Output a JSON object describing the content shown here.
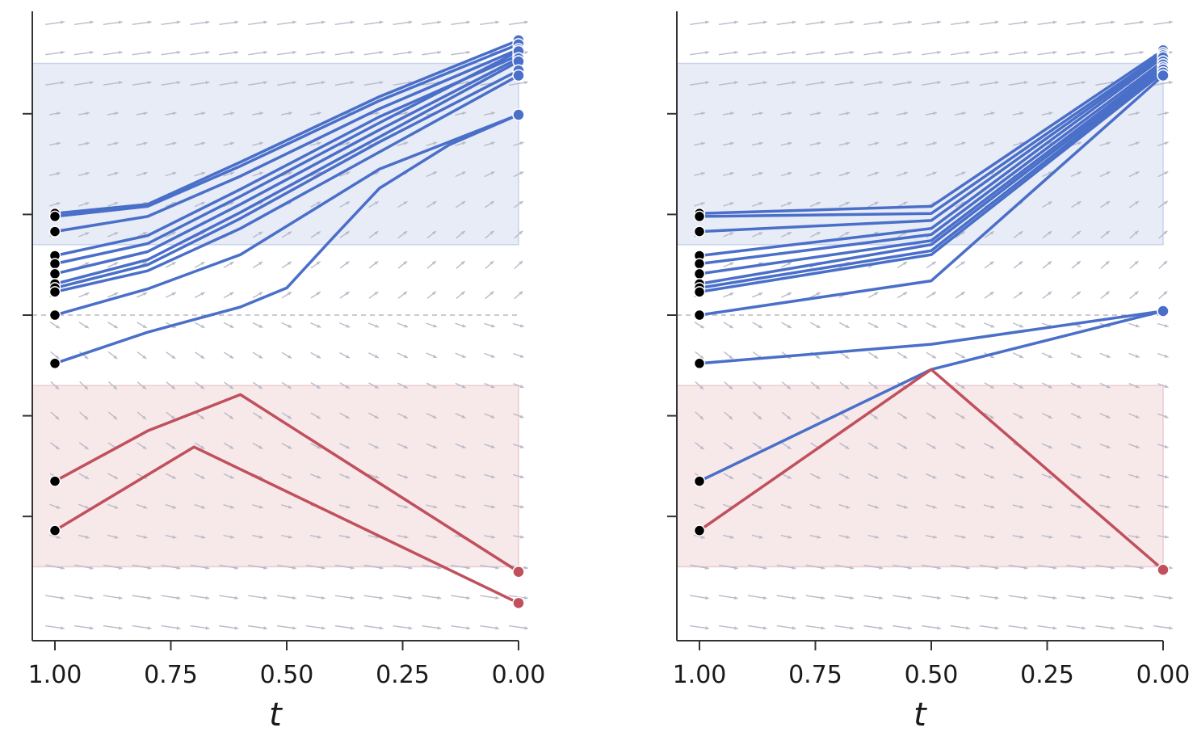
{
  "chart_data": [
    {
      "type": "line",
      "panel": "left",
      "xlabel": "t",
      "x_ticks": [
        "1.00",
        "0.75",
        "0.50",
        "0.25",
        "0.00"
      ],
      "xlim": [
        1.0,
        0.0
      ],
      "ylim": [
        -3.2,
        3.1
      ],
      "y_ticks": [
        -2,
        -1,
        0,
        1,
        2
      ],
      "bands": [
        {
          "name": "blue-region",
          "y0": 0.7,
          "y1": 2.5,
          "color": "#e8ecf7",
          "edge": "#c9d3ee"
        },
        {
          "name": "red-region",
          "y0": -2.5,
          "y1": -0.7,
          "color": "#f7e8ea",
          "edge": "#eccbd0"
        }
      ],
      "zero_line": true,
      "colors": {
        "blue": "#4a6fc9",
        "red": "#c0505c",
        "start": "#000000",
        "vector": "#b9bbc9"
      },
      "trajectories": [
        {
          "class": "blue",
          "points": [
            [
              1.0,
              1.01
            ],
            [
              0.8,
              1.1
            ],
            [
              0.6,
              1.52
            ],
            [
              0.3,
              2.17
            ],
            [
              0.0,
              2.73
            ]
          ]
        },
        {
          "class": "blue",
          "points": [
            [
              1.0,
              0.98
            ],
            [
              0.8,
              1.08
            ],
            [
              0.6,
              1.48
            ],
            [
              0.3,
              2.13
            ],
            [
              0.0,
              2.69
            ]
          ]
        },
        {
          "class": "blue",
          "points": [
            [
              1.0,
              0.83
            ],
            [
              0.8,
              0.98
            ],
            [
              0.6,
              1.38
            ],
            [
              0.3,
              2.05
            ],
            [
              0.0,
              2.64
            ]
          ]
        },
        {
          "class": "blue",
          "points": [
            [
              1.0,
              0.59
            ],
            [
              0.8,
              0.79
            ],
            [
              0.6,
              1.25
            ],
            [
              0.3,
              1.97
            ],
            [
              0.0,
              2.58
            ]
          ]
        },
        {
          "class": "blue",
          "points": [
            [
              1.0,
              0.51
            ],
            [
              0.8,
              0.71
            ],
            [
              0.6,
              1.18
            ],
            [
              0.3,
              1.91
            ],
            [
              0.0,
              2.62
            ]
          ]
        },
        {
          "class": "blue",
          "points": [
            [
              1.0,
              0.41
            ],
            [
              0.8,
              0.63
            ],
            [
              0.6,
              1.1
            ],
            [
              0.3,
              1.84
            ],
            [
              0.0,
              2.55
            ]
          ]
        },
        {
          "class": "blue",
          "points": [
            [
              1.0,
              0.31
            ],
            [
              0.8,
              0.55
            ],
            [
              0.6,
              1.02
            ],
            [
              0.3,
              1.77
            ],
            [
              0.0,
              2.52
            ]
          ]
        },
        {
          "class": "blue",
          "points": [
            [
              1.0,
              0.27
            ],
            [
              0.8,
              0.5
            ],
            [
              0.6,
              0.96
            ],
            [
              0.3,
              1.72
            ],
            [
              0.0,
              2.43
            ]
          ]
        },
        {
          "class": "blue",
          "points": [
            [
              1.0,
              0.23
            ],
            [
              0.8,
              0.44
            ],
            [
              0.6,
              0.86
            ],
            [
              0.3,
              1.62
            ],
            [
              0.0,
              2.38
            ]
          ]
        },
        {
          "class": "blue",
          "points": [
            [
              1.0,
              0.0
            ],
            [
              0.8,
              0.26
            ],
            [
              0.6,
              0.6
            ],
            [
              0.3,
              1.45
            ],
            [
              0.0,
              1.99
            ]
          ]
        },
        {
          "class": "blue",
          "points": [
            [
              1.0,
              -0.48
            ],
            [
              0.8,
              -0.17
            ],
            [
              0.6,
              0.08
            ],
            [
              0.5,
              0.27
            ],
            [
              0.4,
              0.77
            ],
            [
              0.3,
              1.26
            ],
            [
              0.15,
              1.69
            ],
            [
              0.0,
              1.99
            ]
          ]
        },
        {
          "class": "red",
          "points": [
            [
              1.0,
              -1.65
            ],
            [
              0.8,
              -1.15
            ],
            [
              0.6,
              -0.79
            ],
            [
              0.0,
              -2.55
            ]
          ]
        },
        {
          "class": "red",
          "points": [
            [
              1.0,
              -2.14
            ],
            [
              0.7,
              -1.31
            ],
            [
              0.0,
              -2.86
            ]
          ]
        }
      ]
    },
    {
      "type": "line",
      "panel": "right",
      "xlabel": "t",
      "x_ticks": [
        "1.00",
        "0.75",
        "0.50",
        "0.25",
        "0.00"
      ],
      "xlim": [
        1.0,
        0.0
      ],
      "ylim": [
        -3.2,
        3.1
      ],
      "y_ticks": [
        -2,
        -1,
        0,
        1,
        2
      ],
      "bands": [
        {
          "name": "blue-region",
          "y0": 0.7,
          "y1": 2.5,
          "color": "#e8ecf7",
          "edge": "#c9d3ee"
        },
        {
          "name": "red-region",
          "y0": -2.5,
          "y1": -0.7,
          "color": "#f7e8ea",
          "edge": "#eccbd0"
        }
      ],
      "zero_line": true,
      "colors": {
        "blue": "#4a6fc9",
        "red": "#c0505c",
        "start": "#000000",
        "vector": "#b9bbc9"
      },
      "trajectories": [
        {
          "class": "blue",
          "points": [
            [
              1.0,
              1.01
            ],
            [
              0.5,
              1.08
            ],
            [
              0.0,
              2.63
            ]
          ]
        },
        {
          "class": "blue",
          "points": [
            [
              1.0,
              0.98
            ],
            [
              0.5,
              1.01
            ],
            [
              0.0,
              2.6
            ]
          ]
        },
        {
          "class": "blue",
          "points": [
            [
              1.0,
              0.83
            ],
            [
              0.5,
              0.94
            ],
            [
              0.0,
              2.58
            ]
          ]
        },
        {
          "class": "blue",
          "points": [
            [
              1.0,
              0.59
            ],
            [
              0.5,
              0.86
            ],
            [
              0.0,
              2.56
            ]
          ]
        },
        {
          "class": "blue",
          "points": [
            [
              1.0,
              0.51
            ],
            [
              0.5,
              0.8
            ],
            [
              0.0,
              2.52
            ]
          ]
        },
        {
          "class": "blue",
          "points": [
            [
              1.0,
              0.41
            ],
            [
              0.5,
              0.74
            ],
            [
              0.0,
              2.49
            ]
          ]
        },
        {
          "class": "blue",
          "points": [
            [
              1.0,
              0.31
            ],
            [
              0.5,
              0.7
            ],
            [
              0.0,
              2.46
            ]
          ]
        },
        {
          "class": "blue",
          "points": [
            [
              1.0,
              0.27
            ],
            [
              0.5,
              0.64
            ],
            [
              0.0,
              2.44
            ]
          ]
        },
        {
          "class": "blue",
          "points": [
            [
              1.0,
              0.23
            ],
            [
              0.5,
              0.6
            ],
            [
              0.0,
              2.41
            ]
          ]
        },
        {
          "class": "blue",
          "points": [
            [
              1.0,
              0.0
            ],
            [
              0.5,
              0.34
            ],
            [
              0.0,
              2.38
            ]
          ]
        },
        {
          "class": "blue",
          "points": [
            [
              1.0,
              -0.48
            ],
            [
              0.5,
              -0.29
            ],
            [
              0.0,
              0.04
            ]
          ]
        },
        {
          "class": "blue",
          "points": [
            [
              1.0,
              -1.65
            ],
            [
              0.5,
              -0.54
            ],
            [
              0.0,
              0.04
            ]
          ]
        },
        {
          "class": "red",
          "points": [
            [
              1.0,
              -2.14
            ],
            [
              0.5,
              -0.54
            ],
            [
              0.0,
              -2.53
            ]
          ]
        }
      ]
    }
  ]
}
